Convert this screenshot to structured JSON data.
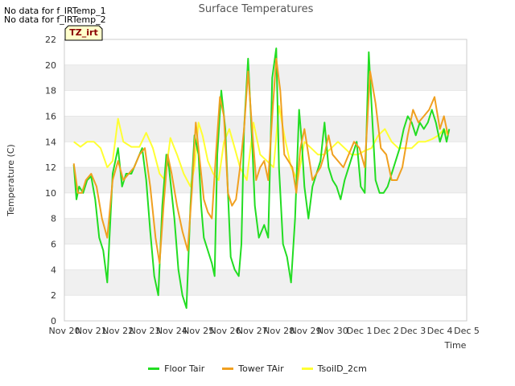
{
  "no_data_notes": [
    "No data for f_IRTemp_1",
    "No data for f_IRTemp_2"
  ],
  "badge_label": "TZ_irt",
  "colors": {
    "floor": "#22dd22",
    "tower": "#f0a020",
    "tsoil": "#ffff33",
    "band": "#f0f0f0",
    "grid": "#dddddd",
    "badge_fill": "#ffffcc"
  },
  "chart_data": {
    "type": "line",
    "title": "Surface Temperatures",
    "xlabel": "Time",
    "ylabel": "Temperature (C)",
    "xlim": [
      0,
      15
    ],
    "ylim": [
      0,
      22
    ],
    "yticks": [
      0,
      2,
      4,
      6,
      8,
      10,
      12,
      14,
      16,
      18,
      20,
      22
    ],
    "xtick_labels": [
      "Nov 20",
      "Nov 21",
      "Nov 22",
      "Nov 23",
      "Nov 24",
      "Nov 25",
      "Nov 26",
      "Nov 27",
      "Nov 28",
      "Nov 29",
      "Nov 30",
      "Dec 1",
      "Dec 2",
      "Dec 3",
      "Dec 4",
      "Dec 5"
    ],
    "series": [
      {
        "name": "Floor Tair",
        "key": "floor",
        "x": [
          0.35,
          0.45,
          0.55,
          0.7,
          0.85,
          1.0,
          1.15,
          1.3,
          1.45,
          1.6,
          1.8,
          2.0,
          2.15,
          2.3,
          2.5,
          2.7,
          2.9,
          3.05,
          3.2,
          3.35,
          3.5,
          3.65,
          3.8,
          3.9,
          4.0,
          4.1,
          4.25,
          4.4,
          4.55,
          4.7,
          4.85,
          5.0,
          5.1,
          5.2,
          5.35,
          5.5,
          5.6,
          5.7,
          5.85,
          6.0,
          6.1,
          6.2,
          6.35,
          6.5,
          6.6,
          6.7,
          6.85,
          7.0,
          7.1,
          7.25,
          7.45,
          7.6,
          7.75,
          7.9,
          8.0,
          8.15,
          8.3,
          8.45,
          8.6,
          8.75,
          8.85,
          8.95,
          9.1,
          9.25,
          9.4,
          9.55,
          9.7,
          9.85,
          10.0,
          10.15,
          10.3,
          10.45,
          10.6,
          10.75,
          10.9,
          11.05,
          11.2,
          11.35,
          11.5,
          11.6,
          11.75,
          11.9,
          12.05,
          12.2,
          12.35,
          12.5,
          12.65,
          12.8,
          12.95,
          13.1,
          13.25,
          13.4,
          13.55,
          13.7,
          13.85,
          14.0,
          14.15,
          14.25,
          14.35
        ],
        "y": [
          12.2,
          9.5,
          10.5,
          10.0,
          11.0,
          11.3,
          9.5,
          6.5,
          5.5,
          3.0,
          11.5,
          13.5,
          10.5,
          11.5,
          11.5,
          12.5,
          13.5,
          11.0,
          7.0,
          3.5,
          2.0,
          9.0,
          13.0,
          12.0,
          10.0,
          8.0,
          4.0,
          2.0,
          1.0,
          9.0,
          14.5,
          13.0,
          9.0,
          6.5,
          5.5,
          4.5,
          3.5,
          13.0,
          18.0,
          15.0,
          10.0,
          5.0,
          4.0,
          3.5,
          6.0,
          15.0,
          20.5,
          14.0,
          9.0,
          6.5,
          7.5,
          6.5,
          19.0,
          21.3,
          12.0,
          6.0,
          5.0,
          3.0,
          8.0,
          16.5,
          14.0,
          10.5,
          8.0,
          10.5,
          11.5,
          12.5,
          15.5,
          12.0,
          11.0,
          10.5,
          9.5,
          11.0,
          12.0,
          13.0,
          14.0,
          10.5,
          10.0,
          21.0,
          15.0,
          11.0,
          10.0,
          10.0,
          10.5,
          11.5,
          12.5,
          13.5,
          15.0,
          16.0,
          15.5,
          14.5,
          15.5,
          15.0,
          15.5,
          16.5,
          15.5,
          14.0,
          15.0,
          14.0,
          15.0
        ]
      },
      {
        "name": "Tower TAir",
        "key": "tower",
        "x": [
          0.35,
          0.5,
          0.65,
          0.8,
          1.0,
          1.2,
          1.4,
          1.6,
          1.8,
          2.0,
          2.2,
          2.4,
          2.6,
          2.8,
          3.0,
          3.2,
          3.4,
          3.55,
          3.7,
          3.85,
          4.0,
          4.2,
          4.4,
          4.6,
          4.75,
          4.9,
          5.05,
          5.2,
          5.35,
          5.5,
          5.65,
          5.8,
          5.95,
          6.1,
          6.25,
          6.4,
          6.55,
          6.7,
          6.85,
          7.0,
          7.15,
          7.3,
          7.45,
          7.6,
          7.75,
          7.9,
          8.05,
          8.2,
          8.35,
          8.5,
          8.65,
          8.8,
          8.95,
          9.1,
          9.25,
          9.4,
          9.55,
          9.7,
          9.85,
          10.0,
          10.2,
          10.4,
          10.6,
          10.8,
          11.0,
          11.2,
          11.4,
          11.6,
          11.8,
          12.0,
          12.2,
          12.4,
          12.6,
          12.8,
          13.0,
          13.2,
          13.4,
          13.6,
          13.8,
          14.0,
          14.15,
          14.3
        ],
        "y": [
          12.3,
          10.0,
          10.0,
          11.0,
          11.5,
          10.5,
          8.0,
          6.5,
          11.0,
          12.5,
          11.0,
          11.5,
          12.0,
          13.0,
          13.5,
          10.5,
          6.5,
          4.5,
          9.0,
          13.0,
          11.5,
          9.0,
          7.0,
          5.5,
          10.0,
          15.5,
          12.5,
          9.5,
          8.5,
          8.0,
          13.0,
          17.5,
          16.0,
          10.0,
          9.0,
          9.5,
          12.0,
          15.0,
          19.5,
          15.0,
          11.0,
          12.0,
          12.5,
          11.0,
          16.0,
          20.5,
          18.0,
          13.0,
          12.5,
          12.0,
          10.0,
          13.5,
          15.0,
          13.0,
          11.0,
          11.5,
          12.0,
          13.0,
          14.5,
          13.0,
          12.5,
          12.0,
          13.0,
          14.0,
          13.5,
          12.0,
          19.5,
          17.0,
          13.5,
          13.0,
          11.0,
          11.0,
          12.0,
          14.5,
          16.5,
          15.5,
          16.0,
          16.5,
          17.5,
          15.0,
          16.0,
          14.5
        ]
      },
      {
        "name": "TsoilD_2cm",
        "key": "tsoil",
        "x": [
          0.35,
          0.6,
          0.85,
          1.1,
          1.35,
          1.6,
          1.8,
          2.0,
          2.2,
          2.5,
          2.8,
          3.05,
          3.3,
          3.55,
          3.75,
          3.95,
          4.2,
          4.45,
          4.7,
          4.85,
          5.0,
          5.15,
          5.35,
          5.55,
          5.75,
          5.95,
          6.15,
          6.35,
          6.55,
          6.8,
          7.05,
          7.3,
          7.55,
          7.8,
          8.0,
          8.2,
          8.45,
          8.7,
          8.95,
          9.2,
          9.45,
          9.7,
          9.95,
          10.2,
          10.45,
          10.7,
          10.95,
          11.2,
          11.45,
          11.7,
          11.95,
          12.2,
          12.45,
          12.7,
          12.95,
          13.2,
          13.45,
          13.7,
          13.95,
          14.15,
          14.3
        ],
        "y": [
          14.0,
          13.6,
          14.0,
          14.0,
          13.5,
          12.0,
          12.5,
          15.8,
          14.0,
          13.6,
          13.6,
          14.7,
          13.5,
          11.5,
          11.0,
          14.3,
          13.0,
          11.5,
          10.5,
          12.0,
          15.5,
          14.5,
          12.5,
          11.5,
          11.0,
          14.0,
          15.0,
          13.5,
          12.0,
          11.0,
          15.5,
          13.0,
          12.5,
          12.0,
          16.8,
          14.5,
          12.0,
          11.0,
          14.0,
          13.5,
          13.0,
          13.0,
          13.5,
          14.0,
          13.5,
          13.0,
          13.0,
          13.3,
          13.5,
          14.5,
          15.0,
          14.0,
          13.5,
          13.5,
          13.5,
          14.0,
          14.0,
          14.2,
          14.5,
          15.0,
          14.5
        ]
      }
    ]
  }
}
